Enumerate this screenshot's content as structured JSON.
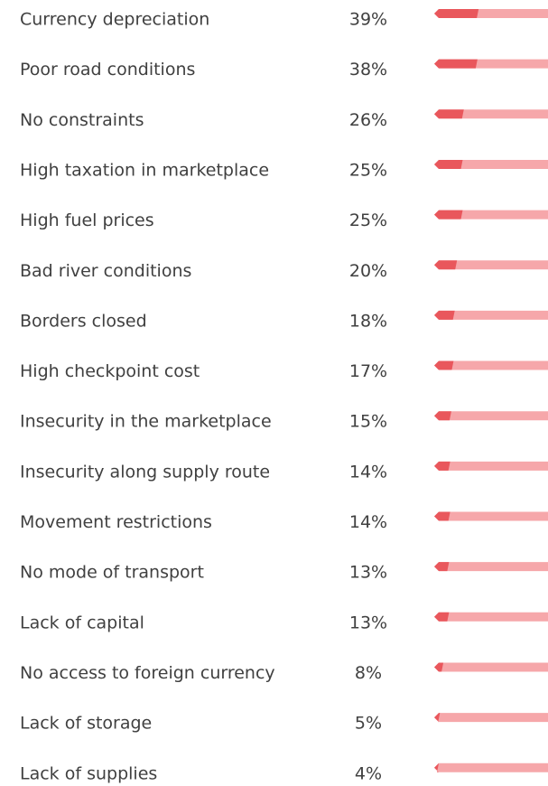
{
  "chart_data": {
    "type": "bar",
    "orientation": "horizontal",
    "categories": [
      "Currency depreciation",
      "Poor road conditions",
      "No constraints",
      "High taxation in marketplace",
      "High fuel prices",
      "Bad river conditions",
      "Borders closed",
      "High checkpoint cost",
      "Insecurity in the marketplace",
      "Insecurity along supply route",
      "Movement restrictions",
      "No mode of transport",
      "Lack of capital",
      "No access to foreign currency",
      "Lack of storage",
      "Lack of supplies"
    ],
    "values": [
      39,
      38,
      26,
      25,
      25,
      20,
      18,
      17,
      15,
      14,
      14,
      13,
      13,
      8,
      5,
      4
    ],
    "value_labels": [
      "39%",
      "38%",
      "26%",
      "25%",
      "25%",
      "20%",
      "18%",
      "17%",
      "15%",
      "14%",
      "14%",
      "13%",
      "13%",
      "8%",
      "5%",
      "4%"
    ],
    "xlim": [
      0,
      100
    ],
    "color": "#e9575c",
    "track_color": "#f6a7aa"
  }
}
